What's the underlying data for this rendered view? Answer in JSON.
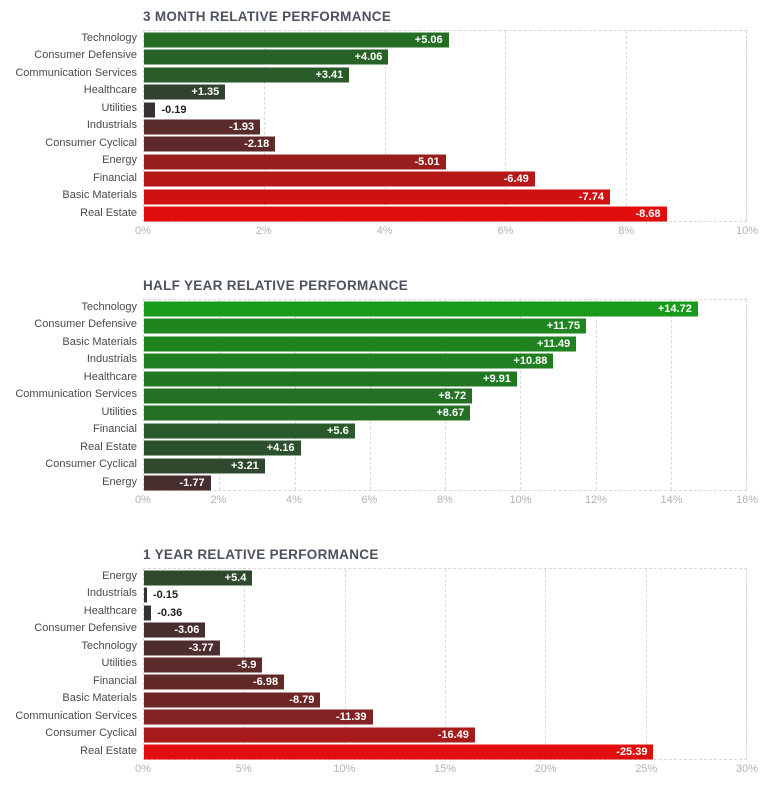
{
  "colors": {
    "positive_max": "#1a9a1a",
    "negative_max": "#e20d0d",
    "neutral": "#333333",
    "grid": "#d9d9d9",
    "title_text": "#4c525e",
    "category_text": "#4a4a4a",
    "tick_text": "#b3b3b3",
    "value_inside_text": "#ffffff",
    "value_outside_text": "#1f1f1f"
  },
  "chart_data": [
    {
      "type": "bar",
      "orientation": "horizontal",
      "title": "3 MONTH RELATIVE PERFORMANCE",
      "categories": [
        "Technology",
        "Consumer Defensive",
        "Communication Services",
        "Healthcare",
        "Utilities",
        "Industrials",
        "Consumer Cyclical",
        "Energy",
        "Financial",
        "Basic Materials",
        "Real Estate"
      ],
      "values": [
        5.06,
        4.06,
        3.41,
        1.35,
        -0.19,
        -1.93,
        -2.18,
        -5.01,
        -6.49,
        -7.74,
        -8.68
      ],
      "value_labels": [
        "+5.06",
        "+4.06",
        "+3.41",
        "+1.35",
        "-0.19",
        "-1.93",
        "-2.18",
        "-5.01",
        "-6.49",
        "-7.74",
        "-8.68"
      ],
      "xlim": [
        0,
        10
      ],
      "tick_labels": [
        "0%",
        "2%",
        "4%",
        "6%",
        "8%",
        "10%"
      ],
      "grid": true,
      "legend": false
    },
    {
      "type": "bar",
      "orientation": "horizontal",
      "title": "HALF YEAR RELATIVE PERFORMANCE",
      "categories": [
        "Technology",
        "Consumer Defensive",
        "Basic Materials",
        "Industrials",
        "Healthcare",
        "Communication Services",
        "Utilities",
        "Financial",
        "Real Estate",
        "Consumer Cyclical",
        "Energy"
      ],
      "values": [
        14.72,
        11.75,
        11.49,
        10.88,
        9.91,
        8.72,
        8.67,
        5.6,
        4.16,
        3.21,
        -1.77
      ],
      "value_labels": [
        "+14.72",
        "+11.75",
        "+11.49",
        "+10.88",
        "+9.91",
        "+8.72",
        "+8.67",
        "+5.6",
        "+4.16",
        "+3.21",
        "-1.77"
      ],
      "xlim": [
        0,
        16
      ],
      "tick_labels": [
        "0%",
        "2%",
        "4%",
        "6%",
        "8%",
        "10%",
        "12%",
        "14%",
        "16%"
      ],
      "grid": true,
      "legend": false
    },
    {
      "type": "bar",
      "orientation": "horizontal",
      "title": "1 YEAR RELATIVE PERFORMANCE",
      "categories": [
        "Energy",
        "Industrials",
        "Healthcare",
        "Consumer Defensive",
        "Technology",
        "Utilities",
        "Financial",
        "Basic Materials",
        "Communication Services",
        "Consumer Cyclical",
        "Real Estate"
      ],
      "values": [
        5.4,
        -0.15,
        -0.36,
        -3.06,
        -3.77,
        -5.9,
        -6.98,
        -8.79,
        -11.39,
        -16.49,
        -25.39
      ],
      "value_labels": [
        "+5.4",
        "-0.15",
        "-0.36",
        "-3.06",
        "-3.77",
        "-5.9",
        "-6.98",
        "-8.79",
        "-11.39",
        "-16.49",
        "-25.39"
      ],
      "xlim": [
        0,
        30
      ],
      "tick_labels": [
        "0%",
        "5%",
        "10%",
        "15%",
        "20%",
        "25%",
        "30%"
      ],
      "grid": true,
      "legend": false
    }
  ]
}
